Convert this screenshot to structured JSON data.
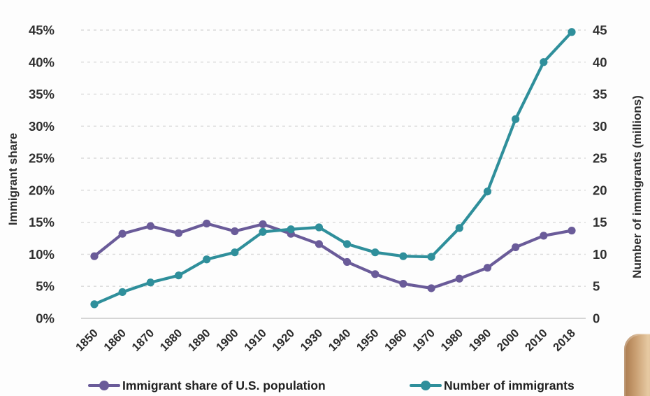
{
  "chart_data": {
    "type": "line",
    "title": "",
    "x": [
      "1850",
      "1860",
      "1870",
      "1880",
      "1890",
      "1900",
      "1910",
      "1920",
      "1930",
      "1940",
      "1950",
      "1960",
      "1970",
      "1980",
      "1990",
      "2000",
      "2010",
      "2018"
    ],
    "series": [
      {
        "name": "Immigrant share of U.S. population",
        "axis": "left",
        "color": "#6a5b99",
        "marker": "circle",
        "values": [
          9.7,
          13.2,
          14.4,
          13.3,
          14.8,
          13.6,
          14.7,
          13.2,
          11.6,
          8.8,
          6.9,
          5.4,
          4.7,
          6.2,
          7.9,
          11.1,
          12.9,
          13.7
        ]
      },
      {
        "name": "Number of immigrants",
        "axis": "right",
        "color": "#2f8f9b",
        "marker": "circle",
        "values": [
          2.2,
          4.1,
          5.6,
          6.7,
          9.2,
          10.3,
          13.5,
          13.9,
          14.2,
          11.6,
          10.3,
          9.7,
          9.6,
          14.1,
          19.8,
          31.1,
          40.0,
          44.7
        ]
      }
    ],
    "left_axis": {
      "label": "Immigrant share",
      "ticks": [
        "0%",
        "5%",
        "10%",
        "15%",
        "20%",
        "25%",
        "30%",
        "35%",
        "40%",
        "45%"
      ],
      "min": 0,
      "max": 45,
      "step": 5
    },
    "right_axis": {
      "label": "Number of immigrants (millions)",
      "ticks": [
        "0",
        "5",
        "10",
        "15",
        "20",
        "25",
        "30",
        "35",
        "40",
        "45"
      ],
      "min": 0,
      "max": 45,
      "step": 5
    },
    "grid": "horizontal-dashed",
    "legend_position": "bottom",
    "colors": {
      "gridline": "#dadada",
      "baseline": "#c8c8c8",
      "tick_text": "#303030"
    }
  }
}
